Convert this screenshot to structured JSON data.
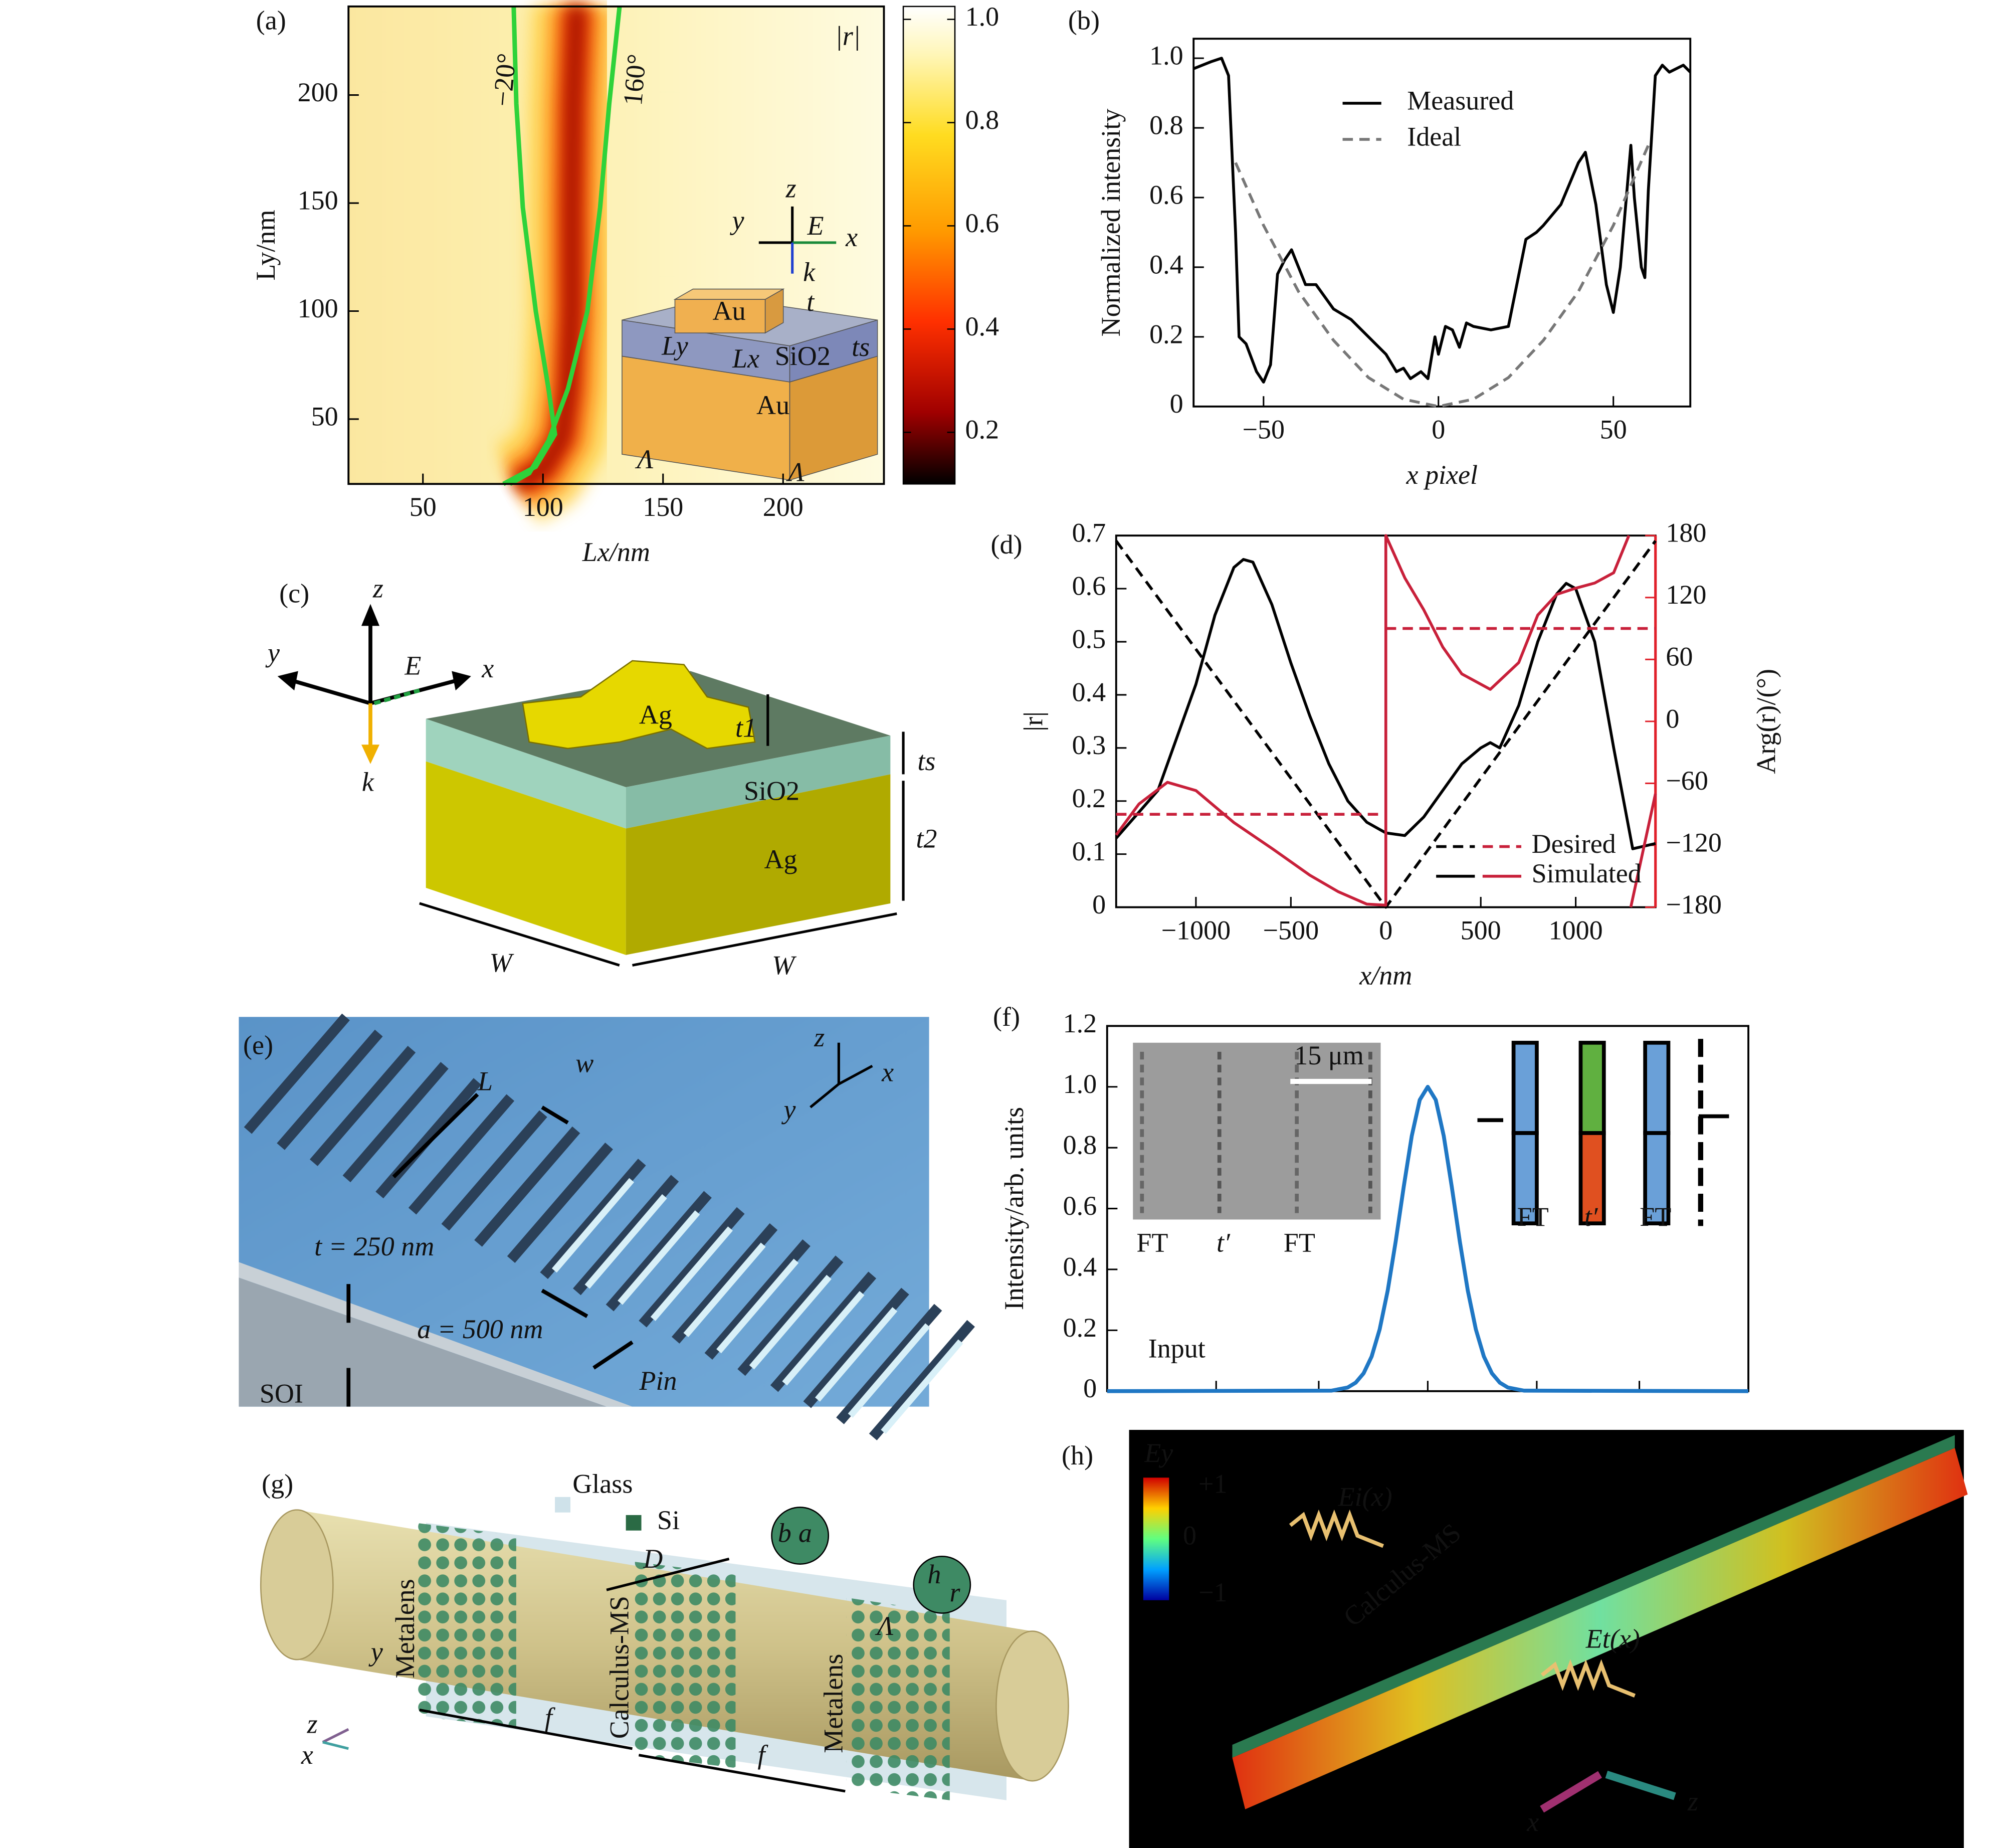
{
  "panel_labels": [
    "(a)",
    "(b)",
    "(c)",
    "(d)",
    "(e)",
    "(f)",
    "(g)",
    "(h)"
  ],
  "chart_data": [
    {
      "type": "heatmap",
      "x_label": "Lx/nm",
      "y_label": "Ly/nm",
      "xlim": [
        19,
        242
      ],
      "ylim": [
        20,
        241
      ],
      "xticks": [
        50,
        100,
        150,
        200
      ],
      "yticks": [
        50,
        100,
        150,
        200
      ],
      "colorbar": {
        "label": "|r|",
        "clim": [
          0.1,
          1.025
        ],
        "ticks": [
          0.2,
          0.4,
          0.6,
          0.8,
          {
            "value": 1,
            "label": "1.0"
          }
        ]
      },
      "contours": [
        {
          "label": "−20°",
          "color": "#2ed23a",
          "x": [
            87.8,
            88.9,
            91.6,
            97,
            102.3,
            105,
            97,
            83.5
          ],
          "y": [
            241,
            196,
            148,
            100,
            64,
            43,
            28,
            20
          ]
        },
        {
          "label": "160°",
          "color": "#2ed23a",
          "x": [
            131.9,
            127.6,
            123.8,
            118.5,
            110.4,
            102.3,
            94.3,
            86.2
          ],
          "y": [
            241,
            196,
            148,
            100,
            64,
            40,
            25,
            20
          ]
        }
      ],
      "inset_labels": [
        "z",
        "y",
        "E",
        "x",
        "k",
        "Au",
        "t",
        "Ly",
        "Lx",
        "SiO2",
        "ts",
        "Au",
        "Λ",
        "Λ"
      ]
    },
    {
      "type": "line",
      "x_label": "x pixel",
      "y_label": "Normalized intensity",
      "xlim": [
        -70,
        72
      ],
      "ylim": [
        0,
        1.056
      ],
      "xticks": [
        {
          "value": -50,
          "label": "−50"
        },
        0,
        50
      ],
      "yticks": [
        0,
        0.2,
        0.4,
        0.6,
        0.8,
        {
          "value": 1,
          "label": "1.0"
        }
      ],
      "legend": "upper center",
      "series": [
        {
          "name": "Measured",
          "color": "#000000",
          "dash": "solid",
          "x": [
            -70,
            -65,
            -62,
            -60,
            -58,
            -57,
            -55,
            -52,
            -50,
            -48,
            -46,
            -44,
            -42,
            -40,
            -38,
            -35,
            -30,
            -25,
            -20,
            -15,
            -12,
            -10,
            -8,
            -5,
            -3,
            -1,
            0,
            2,
            4,
            6,
            8,
            10,
            15,
            20,
            25,
            28,
            30,
            35,
            40,
            42,
            45,
            48,
            50,
            52,
            55,
            56,
            58,
            59,
            60,
            62,
            64,
            66,
            70,
            72
          ],
          "values": [
            0.97,
            0.99,
            1,
            0.95,
            0.5,
            0.2,
            0.18,
            0.1,
            0.07,
            0.12,
            0.38,
            0.42,
            0.45,
            0.4,
            0.35,
            0.35,
            0.28,
            0.25,
            0.2,
            0.15,
            0.1,
            0.11,
            0.08,
            0.1,
            0.08,
            0.2,
            0.15,
            0.23,
            0.22,
            0.17,
            0.24,
            0.23,
            0.22,
            0.23,
            0.48,
            0.5,
            0.52,
            0.58,
            0.7,
            0.73,
            0.58,
            0.35,
            0.27,
            0.4,
            0.75,
            0.6,
            0.4,
            0.37,
            0.62,
            0.95,
            0.98,
            0.96,
            0.98,
            0.96
          ]
        },
        {
          "name": "Ideal",
          "color": "#777777",
          "dash": "dashed",
          "x": [
            -58,
            -50,
            -40,
            -30,
            -20,
            -10,
            0,
            10,
            20,
            30,
            40,
            50,
            60
          ],
          "values": [
            0.7,
            0.52,
            0.33,
            0.19,
            0.083,
            0.021,
            0,
            0.021,
            0.083,
            0.19,
            0.33,
            0.52,
            0.75
          ]
        }
      ]
    },
    {
      "type": "line",
      "x_label": "x/nm",
      "y_label": "|r|",
      "y2_label": "Arg(r)/(°)",
      "y2_color": "#e0202a",
      "xlim": [
        -1420,
        1420
      ],
      "ylim": [
        0,
        0.7
      ],
      "y2lim": [
        -180,
        180
      ],
      "xticks": [
        {
          "value": -1000,
          "label": "−1000"
        },
        {
          "value": -500,
          "label": "−500"
        },
        0,
        500,
        1000
      ],
      "yticks": [
        0,
        0.1,
        0.2,
        0.3,
        0.4,
        0.5,
        0.6,
        0.7
      ],
      "y2ticks": [
        {
          "value": -180,
          "label": "−180"
        },
        {
          "value": -120,
          "label": "−120"
        },
        {
          "value": -60,
          "label": "−60"
        },
        0,
        60,
        120,
        180
      ],
      "legend": "lower right",
      "series": [
        {
          "name": "Desired",
          "color": "#000000",
          "dash": "dashed",
          "x": [
            -1420,
            0,
            1420
          ],
          "values": [
            0.69,
            0,
            0.69
          ]
        },
        {
          "name": "Simulated",
          "color": "#000000",
          "dash": "solid",
          "x": [
            -1420,
            -1200,
            -1000,
            -900,
            -800,
            -750,
            -700,
            -600,
            -500,
            -400,
            -300,
            -200,
            -100,
            0,
            100,
            200,
            300,
            400,
            500,
            550,
            600,
            700,
            800,
            900,
            950,
            1000,
            1100,
            1200,
            1300,
            1420
          ],
          "values": [
            0.13,
            0.22,
            0.42,
            0.55,
            0.64,
            0.655,
            0.65,
            0.57,
            0.46,
            0.36,
            0.27,
            0.2,
            0.16,
            0.14,
            0.135,
            0.17,
            0.22,
            0.27,
            0.3,
            0.31,
            0.3,
            0.38,
            0.5,
            0.59,
            0.61,
            0.6,
            0.5,
            0.3,
            0.11,
            0.12
          ]
        },
        {
          "axis": "y2",
          "color": "#c8203a",
          "dash": "dashed",
          "x": [
            -1420,
            0,
            null,
            0,
            1420
          ],
          "values": [
            -90,
            -90,
            null,
            90,
            90
          ]
        },
        {
          "axis": "y2",
          "color": "#c8203a",
          "dash": "solid",
          "x": [
            -1420,
            -1300,
            -1150,
            -1000,
            -800,
            -600,
            -400,
            -250,
            -100,
            0,
            0,
            100,
            200,
            300,
            400,
            550,
            700,
            800,
            900,
            1000,
            1100,
            1200,
            1280,
            null,
            1290,
            1420
          ],
          "values": [
            -110,
            -80,
            -59,
            -67,
            -98,
            -123,
            -149,
            -165,
            -177,
            -178,
            180,
            139,
            108,
            72,
            46,
            31,
            57,
            103,
            123,
            129,
            134,
            144,
            180,
            null,
            -180,
            -70
          ]
        }
      ]
    },
    {
      "type": "line",
      "y_label": "Intensity/arb. units",
      "xlim": [
        0,
        10
      ],
      "ylim": [
        0,
        1.2
      ],
      "xticks": [
        1.7,
        3.3,
        5,
        6.7,
        8.3
      ],
      "xtick_labels": false,
      "yticks": [
        0,
        0.2,
        0.4,
        0.6,
        0.8,
        {
          "value": 1,
          "label": "1.0"
        },
        1.2
      ],
      "series": [
        {
          "color": "#1f77c4",
          "dash": "solid",
          "x": [
            0,
            3.5,
            3.75,
            3.875,
            4,
            4.125,
            4.25,
            4.375,
            4.5,
            4.625,
            4.75,
            4.875,
            5,
            5.125,
            5.25,
            5.375,
            5.5,
            5.625,
            5.75,
            5.875,
            6,
            6.125,
            6.25,
            6.5,
            10
          ],
          "values": [
            0,
            0.0017,
            0.0119,
            0.0277,
            0.0588,
            0.114,
            0.203,
            0.33,
            0.492,
            0.671,
            0.838,
            0.957,
            1,
            0.957,
            0.838,
            0.671,
            0.492,
            0.33,
            0.203,
            0.114,
            0.0588,
            0.0277,
            0.0119,
            0.0017,
            0
          ]
        }
      ],
      "annotations": [
        "15 μm",
        "FT",
        "t′",
        "FT",
        "FT",
        "t′",
        "FT",
        "Input"
      ]
    }
  ],
  "diagram_c": {
    "labels": [
      "z",
      "y",
      "x",
      "E",
      "k",
      "Ag",
      "t1",
      "ts",
      "SiO2",
      "Ag",
      "t2",
      "W",
      "W"
    ]
  },
  "diagram_e": {
    "labels": [
      "L",
      "w",
      "t = 250 nm",
      "a = 500 nm",
      "Pin",
      "SOI",
      "z",
      "x",
      "y"
    ]
  },
  "diagram_g": {
    "labels": [
      "Glass",
      "Si",
      "D",
      "b",
      "a",
      "h",
      "r",
      "Λ",
      "Metalens",
      "Calculus-MS",
      "Metalens",
      "f",
      "f",
      "y",
      "z",
      "x"
    ]
  },
  "diagram_h": {
    "labels": [
      "Ey",
      "+1",
      "0",
      "−1",
      "Ei(x)",
      "Calculus-MS",
      "Et(x)",
      "x",
      "z"
    ]
  }
}
